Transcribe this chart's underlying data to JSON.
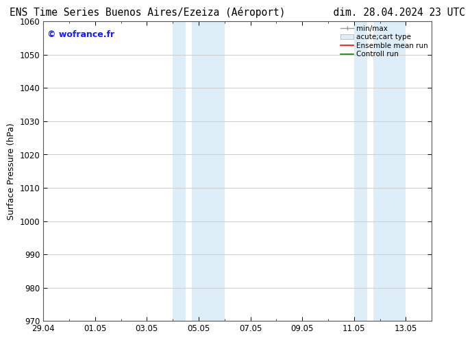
{
  "title": "ENS Time Series Buenos Aires/Ezeiza (Aéroport)        dim. 28.04.2024 23 UTC",
  "ylabel": "Surface Pressure (hPa)",
  "ylim": [
    970,
    1060
  ],
  "yticks": [
    970,
    980,
    990,
    1000,
    1010,
    1020,
    1030,
    1040,
    1050,
    1060
  ],
  "xlim": [
    0,
    15
  ],
  "xtick_labels": [
    "29.04",
    "01.05",
    "03.05",
    "05.05",
    "07.05",
    "09.05",
    "11.05",
    "13.05"
  ],
  "xtick_positions": [
    0,
    2,
    4,
    6,
    8,
    10,
    12,
    14
  ],
  "shaded_regions": [
    {
      "start": 5.0,
      "end": 5.5
    },
    {
      "start": 5.75,
      "end": 7.0
    },
    {
      "start": 12.0,
      "end": 12.5
    },
    {
      "start": 12.75,
      "end": 14.0
    }
  ],
  "shaded_color": "#ddeef8",
  "watermark_text": "© wofrance.fr",
  "watermark_color": "#1a1aff",
  "legend_entries": [
    {
      "label": "min/max",
      "color": "#999999",
      "style": "errorbar"
    },
    {
      "label": "acute;cart type",
      "color": "#ddeef8",
      "style": "fill"
    },
    {
      "label": "Ensemble mean run",
      "color": "#ff0000",
      "style": "line"
    },
    {
      "label": "Controll run",
      "color": "#008000",
      "style": "line"
    }
  ],
  "bg_color": "#ffffff",
  "plot_bg_color": "#ffffff",
  "grid_color": "#cccccc",
  "title_fontsize": 10.5,
  "tick_fontsize": 8.5,
  "label_fontsize": 9,
  "watermark_fontsize": 9,
  "legend_fontsize": 7.5
}
